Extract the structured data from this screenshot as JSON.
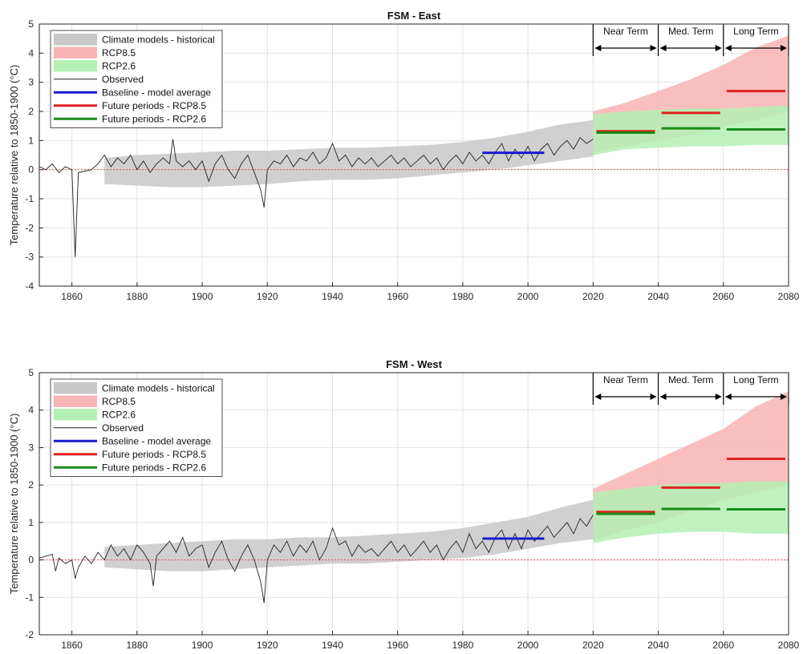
{
  "chart_data": [
    {
      "type": "line",
      "title": "FSM - East",
      "ylabel": "Temperature relative to 1850-1900 (°C)",
      "xlabel": "",
      "xlim": [
        1850,
        2080
      ],
      "ylim": [
        -4,
        5
      ],
      "xticks": [
        1860,
        1880,
        1900,
        1920,
        1940,
        1960,
        1980,
        2000,
        2020,
        2040,
        2060,
        2080
      ],
      "yticks": [
        -4,
        -3,
        -2,
        -1,
        0,
        1,
        2,
        3,
        4,
        5
      ],
      "grid": true,
      "legend_position": "top-left",
      "legend": [
        {
          "label": "Climate models - historical",
          "kind": "band",
          "color": "#c8c8c8"
        },
        {
          "label": "RCP8.5",
          "kind": "band",
          "color": "#f8b4b4"
        },
        {
          "label": "RCP2.6",
          "kind": "band",
          "color": "#b4f0b4"
        },
        {
          "label": "Observed",
          "kind": "thin-line",
          "color": "#222222"
        },
        {
          "label": "Baseline - model average",
          "kind": "line",
          "color": "#1a1ad0"
        },
        {
          "label": "Future periods - RCP8.5",
          "kind": "line",
          "color": "#e02020"
        },
        {
          "label": "Future periods - RCP2.6",
          "kind": "line",
          "color": "#1a8a1a"
        }
      ],
      "period_labels": [
        {
          "label": "Near Term",
          "start": 2020,
          "end": 2040
        },
        {
          "label": "Med. Term",
          "start": 2040,
          "end": 2060
        },
        {
          "label": "Long Term",
          "start": 2060,
          "end": 2080
        }
      ],
      "historical_band": {
        "x": [
          1870,
          1880,
          1890,
          1900,
          1910,
          1920,
          1930,
          1940,
          1950,
          1960,
          1970,
          1980,
          1990,
          2000,
          2010,
          2020
        ],
        "low": [
          -0.5,
          -0.55,
          -0.6,
          -0.6,
          -0.55,
          -0.5,
          -0.4,
          -0.35,
          -0.35,
          -0.3,
          -0.2,
          -0.1,
          0.0,
          0.15,
          0.3,
          0.45
        ],
        "high": [
          0.4,
          0.5,
          0.55,
          0.6,
          0.65,
          0.65,
          0.7,
          0.75,
          0.75,
          0.8,
          0.85,
          0.95,
          1.1,
          1.3,
          1.55,
          1.7
        ]
      },
      "rcp85_band": {
        "x": [
          2020,
          2030,
          2040,
          2050,
          2060,
          2070,
          2080
        ],
        "low": [
          0.6,
          0.8,
          1.0,
          1.2,
          1.5,
          1.7,
          2.0
        ],
        "high": [
          2.0,
          2.3,
          2.7,
          3.1,
          3.6,
          4.2,
          4.6
        ]
      },
      "rcp26_band": {
        "x": [
          2020,
          2030,
          2040,
          2050,
          2060,
          2070,
          2080
        ],
        "low": [
          0.5,
          0.7,
          0.75,
          0.8,
          0.8,
          0.85,
          0.85
        ],
        "high": [
          1.9,
          2.0,
          2.05,
          2.1,
          2.1,
          2.15,
          2.2
        ]
      },
      "observed": {
        "x": [
          1850,
          1852,
          1854,
          1856,
          1858,
          1860,
          1861,
          1862,
          1864,
          1866,
          1868,
          1870,
          1872,
          1874,
          1876,
          1878,
          1880,
          1882,
          1884,
          1886,
          1888,
          1890,
          1891,
          1892,
          1894,
          1896,
          1898,
          1900,
          1902,
          1904,
          1906,
          1908,
          1910,
          1912,
          1914,
          1916,
          1918,
          1919,
          1920,
          1922,
          1924,
          1926,
          1928,
          1930,
          1932,
          1934,
          1936,
          1938,
          1940,
          1942,
          1944,
          1946,
          1948,
          1950,
          1952,
          1954,
          1956,
          1958,
          1960,
          1962,
          1964,
          1966,
          1968,
          1970,
          1972,
          1974,
          1976,
          1978,
          1980,
          1982,
          1984,
          1986,
          1988,
          1990,
          1992,
          1994,
          1996,
          1998,
          2000,
          2002,
          2004,
          2006,
          2008,
          2010,
          2012,
          2014,
          2016,
          2018,
          2020
        ],
        "y": [
          0.1,
          0.0,
          0.2,
          -0.1,
          0.1,
          0.0,
          -3.0,
          -0.1,
          -0.05,
          0.0,
          0.2,
          0.5,
          0.1,
          0.4,
          0.2,
          0.5,
          0.0,
          0.3,
          -0.1,
          0.2,
          0.4,
          0.2,
          1.05,
          0.3,
          0.1,
          0.3,
          0.0,
          0.3,
          -0.4,
          0.2,
          0.5,
          0.0,
          -0.3,
          0.2,
          0.5,
          -0.1,
          -0.7,
          -1.3,
          0.0,
          0.3,
          0.2,
          0.5,
          0.1,
          0.4,
          0.3,
          0.6,
          0.2,
          0.4,
          0.9,
          0.3,
          0.5,
          0.1,
          0.4,
          0.2,
          0.4,
          0.1,
          0.3,
          0.5,
          0.2,
          0.4,
          0.1,
          0.3,
          0.5,
          0.2,
          0.4,
          0.0,
          0.3,
          0.5,
          0.2,
          0.6,
          0.3,
          0.5,
          0.2,
          0.6,
          0.9,
          0.3,
          0.7,
          0.4,
          0.8,
          0.3,
          0.7,
          0.9,
          0.5,
          0.8,
          1.0,
          0.7,
          1.1,
          0.9,
          1.05
        ]
      },
      "baseline": {
        "x": [
          1986,
          2005
        ],
        "y": 0.58
      },
      "future_rcp85": [
        {
          "x": [
            2021,
            2039
          ],
          "y": 1.32
        },
        {
          "x": [
            2041,
            2059
          ],
          "y": 1.95
        },
        {
          "x": [
            2061,
            2079
          ],
          "y": 2.7
        }
      ],
      "future_rcp26": [
        {
          "x": [
            2021,
            2039
          ],
          "y": 1.27
        },
        {
          "x": [
            2041,
            2059
          ],
          "y": 1.42
        },
        {
          "x": [
            2061,
            2079
          ],
          "y": 1.38
        }
      ]
    },
    {
      "type": "line",
      "title": "FSM - West",
      "ylabel": "Temperature relative to 1850-1900 (°C)",
      "xlabel": "",
      "xlim": [
        1850,
        2080
      ],
      "ylim": [
        -2,
        5
      ],
      "xticks": [
        1860,
        1880,
        1900,
        1920,
        1940,
        1960,
        1980,
        2000,
        2020,
        2040,
        2060,
        2080
      ],
      "yticks": [
        -2,
        -1,
        0,
        1,
        2,
        3,
        4,
        5
      ],
      "grid": true,
      "legend_position": "top-left",
      "legend": [
        {
          "label": "Climate models - historical",
          "kind": "band",
          "color": "#c8c8c8"
        },
        {
          "label": "RCP8.5",
          "kind": "band",
          "color": "#f8b4b4"
        },
        {
          "label": "RCP2.6",
          "kind": "band",
          "color": "#b4f0b4"
        },
        {
          "label": "Observed",
          "kind": "thin-line",
          "color": "#222222"
        },
        {
          "label": "Baseline - model average",
          "kind": "line",
          "color": "#1a1ad0"
        },
        {
          "label": "Future periods - RCP8.5",
          "kind": "line",
          "color": "#e02020"
        },
        {
          "label": "Future periods - RCP2.6",
          "kind": "line",
          "color": "#1a8a1a"
        }
      ],
      "period_labels": [
        {
          "label": "Near Term",
          "start": 2020,
          "end": 2040
        },
        {
          "label": "Med. Term",
          "start": 2040,
          "end": 2060
        },
        {
          "label": "Long Term",
          "start": 2060,
          "end": 2080
        }
      ],
      "historical_band": {
        "x": [
          1870,
          1880,
          1890,
          1900,
          1910,
          1920,
          1930,
          1940,
          1950,
          1960,
          1970,
          1980,
          1990,
          2000,
          2010,
          2020
        ],
        "low": [
          -0.2,
          -0.25,
          -0.3,
          -0.3,
          -0.25,
          -0.2,
          -0.15,
          -0.1,
          -0.1,
          -0.05,
          0.0,
          0.05,
          0.15,
          0.3,
          0.45,
          0.55
        ],
        "high": [
          0.35,
          0.4,
          0.45,
          0.5,
          0.55,
          0.55,
          0.6,
          0.6,
          0.65,
          0.7,
          0.75,
          0.85,
          1.0,
          1.15,
          1.4,
          1.6
        ]
      },
      "rcp85_band": {
        "x": [
          2020,
          2030,
          2040,
          2050,
          2060,
          2070,
          2080
        ],
        "low": [
          0.5,
          0.8,
          1.0,
          1.3,
          1.6,
          1.8,
          2.0
        ],
        "high": [
          1.9,
          2.3,
          2.7,
          3.1,
          3.5,
          4.1,
          4.5
        ]
      },
      "rcp26_band": {
        "x": [
          2020,
          2030,
          2040,
          2050,
          2060,
          2070,
          2080
        ],
        "low": [
          0.45,
          0.6,
          0.7,
          0.75,
          0.75,
          0.7,
          0.7
        ],
        "high": [
          1.8,
          1.9,
          2.0,
          2.05,
          2.05,
          2.1,
          2.1
        ]
      },
      "observed": {
        "x": [
          1850,
          1852,
          1854,
          1855,
          1856,
          1858,
          1860,
          1861,
          1862,
          1864,
          1866,
          1868,
          1870,
          1872,
          1874,
          1876,
          1878,
          1880,
          1882,
          1884,
          1885,
          1886,
          1888,
          1890,
          1892,
          1894,
          1896,
          1898,
          1900,
          1902,
          1904,
          1906,
          1908,
          1910,
          1912,
          1914,
          1916,
          1918,
          1919,
          1920,
          1922,
          1924,
          1926,
          1928,
          1930,
          1932,
          1934,
          1936,
          1938,
          1940,
          1942,
          1944,
          1946,
          1948,
          1950,
          1952,
          1954,
          1956,
          1958,
          1960,
          1962,
          1964,
          1966,
          1968,
          1970,
          1972,
          1974,
          1976,
          1978,
          1980,
          1982,
          1984,
          1986,
          1988,
          1990,
          1992,
          1994,
          1996,
          1998,
          2000,
          2002,
          2004,
          2006,
          2008,
          2010,
          2012,
          2014,
          2016,
          2018,
          2020
        ],
        "y": [
          0.05,
          0.1,
          0.15,
          -0.3,
          0.05,
          -0.1,
          0.0,
          -0.5,
          -0.2,
          0.1,
          -0.1,
          0.2,
          0.0,
          0.4,
          0.1,
          0.3,
          0.0,
          0.4,
          0.2,
          -0.1,
          -0.7,
          0.1,
          0.3,
          0.5,
          0.2,
          0.6,
          0.1,
          0.3,
          0.4,
          -0.2,
          0.2,
          0.5,
          0.0,
          -0.3,
          0.1,
          0.4,
          0.0,
          -0.6,
          -1.15,
          0.0,
          0.4,
          0.2,
          0.5,
          0.1,
          0.4,
          0.2,
          0.5,
          0.0,
          0.3,
          0.85,
          0.4,
          0.5,
          0.1,
          0.4,
          0.2,
          0.3,
          0.1,
          0.3,
          0.5,
          0.2,
          0.4,
          0.1,
          0.3,
          0.5,
          0.2,
          0.4,
          0.0,
          0.3,
          0.5,
          0.2,
          0.7,
          0.3,
          0.5,
          0.2,
          0.6,
          0.8,
          0.3,
          0.7,
          0.3,
          0.8,
          0.5,
          0.7,
          0.9,
          0.6,
          0.8,
          1.0,
          0.7,
          1.1,
          0.9,
          1.2
        ]
      },
      "baseline": {
        "x": [
          1986,
          2005
        ],
        "y": 0.57
      },
      "future_rcp85": [
        {
          "x": [
            2021,
            2039
          ],
          "y": 1.28
        },
        {
          "x": [
            2041,
            2059
          ],
          "y": 1.93
        },
        {
          "x": [
            2061,
            2079
          ],
          "y": 2.7
        }
      ],
      "future_rcp26": [
        {
          "x": [
            2021,
            2039
          ],
          "y": 1.23
        },
        {
          "x": [
            2041,
            2059
          ],
          "y": 1.36
        },
        {
          "x": [
            2061,
            2079
          ],
          "y": 1.35
        }
      ]
    }
  ]
}
